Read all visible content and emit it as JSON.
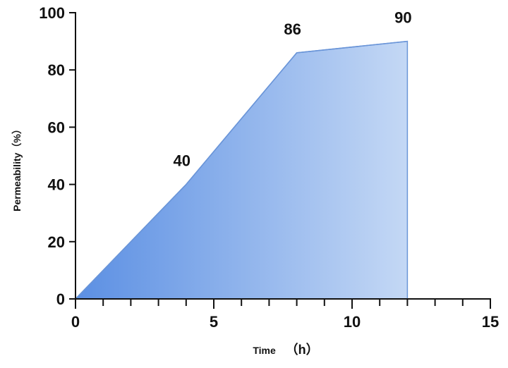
{
  "chart_data": {
    "type": "area",
    "x": [
      0,
      4,
      8,
      12
    ],
    "y": [
      0,
      40,
      86,
      90
    ],
    "data_labels": [
      {
        "x": 4,
        "y": 40,
        "text": "40"
      },
      {
        "x": 8,
        "y": 86,
        "text": "86"
      },
      {
        "x": 12,
        "y": 90,
        "text": "90"
      }
    ],
    "xlabel": "Time （h）",
    "xlabel_main": "Time",
    "xlabel_unit": "（h）",
    "ylabel": "Permeability（%）",
    "xlim": [
      0,
      15
    ],
    "ylim": [
      0,
      100
    ],
    "x_major_ticks": [
      0,
      5,
      10,
      15
    ],
    "x_major_tick_labels": [
      "0",
      "5",
      "10",
      "15"
    ],
    "x_minor_tick_step": 1,
    "y_major_ticks": [
      0,
      20,
      40,
      60,
      80,
      100
    ],
    "y_major_tick_labels": [
      "0",
      "20",
      "40",
      "60",
      "80",
      "100"
    ],
    "grid": false,
    "colors": {
      "fill_start": "#5b8fe3",
      "fill_end": "#c4d8f5",
      "stroke": "#6a95d8",
      "axis": "#111111"
    }
  }
}
